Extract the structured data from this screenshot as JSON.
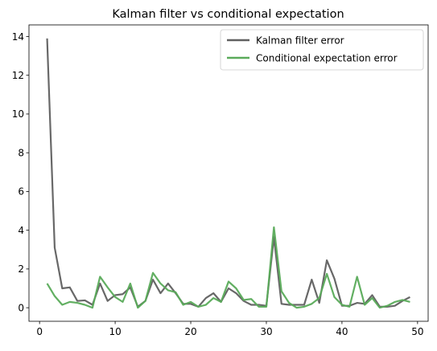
{
  "chart_data": {
    "type": "line",
    "title": "Kalman filter vs conditional expectation",
    "xlabel": "",
    "ylabel": "",
    "xlim": [
      -1.4,
      51.4
    ],
    "ylim": [
      -0.7,
      14.6
    ],
    "xticks": [
      0,
      10,
      20,
      30,
      40,
      50
    ],
    "yticks": [
      0,
      2,
      4,
      6,
      8,
      10,
      12,
      14
    ],
    "grid": false,
    "legend_position": "top-right",
    "x": [
      1,
      2,
      3,
      4,
      5,
      6,
      7,
      8,
      9,
      10,
      11,
      12,
      13,
      14,
      15,
      16,
      17,
      18,
      19,
      20,
      21,
      22,
      23,
      24,
      25,
      26,
      27,
      28,
      29,
      30,
      31,
      32,
      33,
      34,
      35,
      36,
      37,
      38,
      39,
      40,
      41,
      42,
      43,
      44,
      45,
      46,
      47,
      48,
      49
    ],
    "series": [
      {
        "name": "Kalman filter error",
        "color": "#606060",
        "values": [
          13.9,
          3.1,
          1.0,
          1.05,
          0.35,
          0.38,
          0.15,
          1.25,
          0.35,
          0.65,
          0.7,
          1.05,
          0.05,
          0.35,
          1.45,
          0.75,
          1.25,
          0.75,
          0.2,
          0.2,
          0.05,
          0.5,
          0.75,
          0.3,
          1.0,
          0.75,
          0.35,
          0.15,
          0.15,
          0.1,
          3.65,
          0.2,
          0.15,
          0.15,
          0.15,
          1.45,
          0.25,
          2.45,
          1.5,
          0.1,
          0.1,
          0.25,
          0.2,
          0.65,
          0.05,
          0.05,
          0.1,
          0.35,
          0.55
        ]
      },
      {
        "name": "Conditional expectation error",
        "color": "#5aab5a",
        "values": [
          1.25,
          0.6,
          0.15,
          0.3,
          0.25,
          0.15,
          0.0,
          1.6,
          1.05,
          0.55,
          0.3,
          1.25,
          0.0,
          0.35,
          1.8,
          1.25,
          0.9,
          0.8,
          0.15,
          0.3,
          0.05,
          0.15,
          0.5,
          0.3,
          1.35,
          1.0,
          0.4,
          0.45,
          0.05,
          0.05,
          4.15,
          0.85,
          0.25,
          0.0,
          0.05,
          0.2,
          0.5,
          1.75,
          0.55,
          0.15,
          0.05,
          1.6,
          0.15,
          0.5,
          0.0,
          0.1,
          0.3,
          0.4,
          0.3
        ]
      }
    ]
  }
}
